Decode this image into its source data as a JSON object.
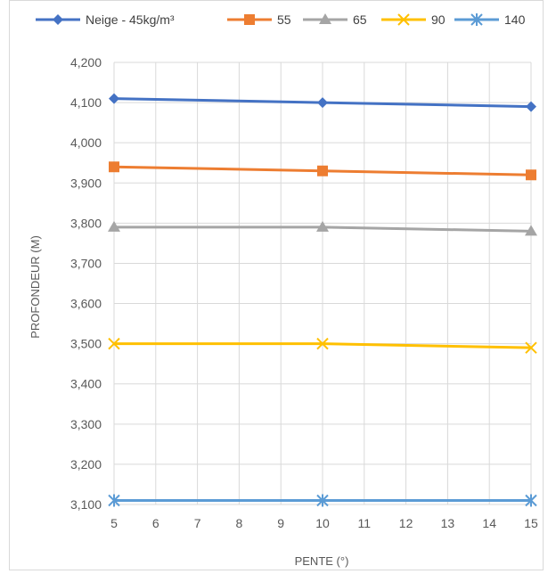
{
  "chart_data": {
    "type": "line",
    "title": "",
    "xlabel": "PENTE (°)",
    "ylabel": "PROFONDEUR (M)",
    "xlim": [
      5,
      15
    ],
    "ylim": [
      3100,
      4200
    ],
    "x_ticks": [
      "5",
      "6",
      "7",
      "8",
      "9",
      "10",
      "11",
      "12",
      "13",
      "14",
      "15"
    ],
    "y_ticks": [
      "3,100",
      "3,200",
      "3,300",
      "3,400",
      "3,500",
      "3,600",
      "3,700",
      "3,800",
      "3,900",
      "4,000",
      "4,100",
      "4,200"
    ],
    "grid": true,
    "legend_position": "top",
    "x": [
      5,
      10,
      15
    ],
    "series": [
      {
        "name": "Neige - 45kg/m³",
        "values": [
          4110,
          4100,
          4090
        ],
        "color": "#4472c4",
        "marker": "diamond"
      },
      {
        "name": "55",
        "values": [
          3940,
          3930,
          3920
        ],
        "color": "#ed7d31",
        "marker": "square"
      },
      {
        "name": "65",
        "values": [
          3790,
          3790,
          3780
        ],
        "color": "#a5a5a5",
        "marker": "triangle"
      },
      {
        "name": "90",
        "values": [
          3500,
          3500,
          3490
        ],
        "color": "#ffc000",
        "marker": "x"
      },
      {
        "name": "140",
        "values": [
          3110,
          3110,
          3110
        ],
        "color": "#5b9bd5",
        "marker": "star"
      }
    ]
  }
}
